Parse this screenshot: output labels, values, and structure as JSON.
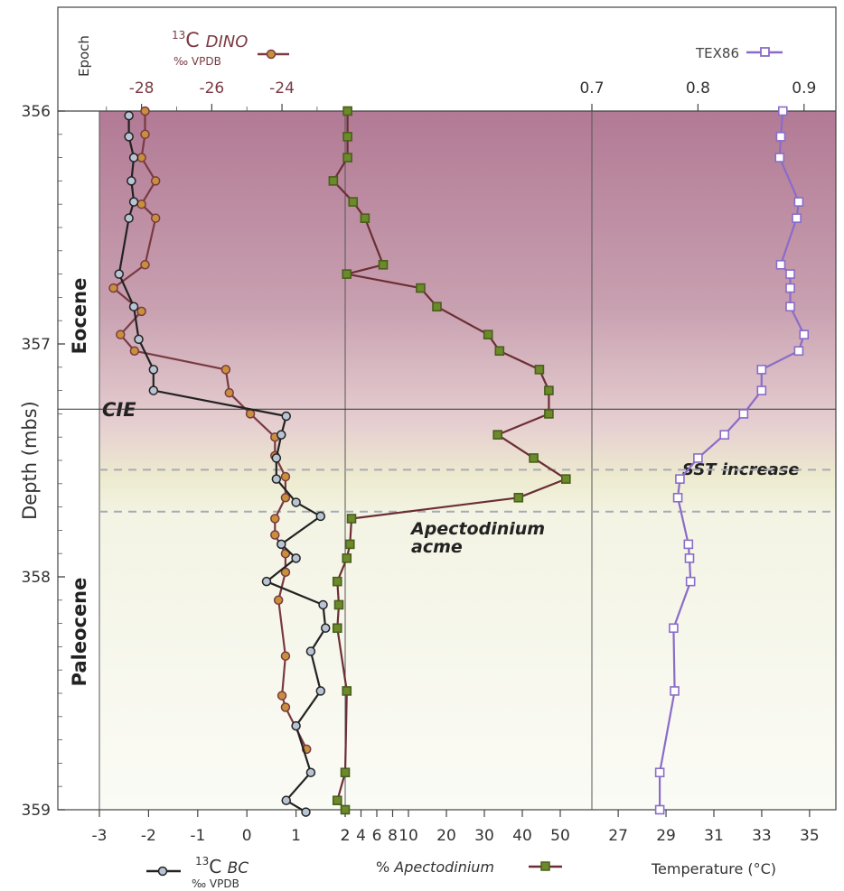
{
  "chart_data": {
    "type": "line",
    "y_axis": {
      "label": "Depth (mbs)",
      "range": [
        356,
        359
      ],
      "ticks": [
        "356",
        "357",
        "358",
        "359"
      ]
    },
    "epoch_label": "Epoch",
    "epochs": [
      {
        "name": "Eocene",
        "from": 356,
        "to": 357.28
      },
      {
        "name": "Paleocene",
        "from": 357.28,
        "to": 359
      }
    ],
    "annotations": {
      "cie": "CIE",
      "sst": "SST increase",
      "acme_line1": "Apectodinium",
      "acme_line2": "acme"
    },
    "cie_depth": 357.28,
    "dashed_lines": [
      357.54,
      357.72
    ],
    "panels": [
      {
        "id": "d13c",
        "top_axis": {
          "title_sup": "13",
          "title_main": "C ",
          "title_italic": "DINO",
          "title_sub": "‰ VPDB",
          "range": [
            -29.2,
            -22.2
          ],
          "ticks": [
            "-28",
            "-26",
            "-24"
          ]
        },
        "bottom_axis": {
          "title_sup": "13",
          "title_main": "C ",
          "title_italic": "BC",
          "title_sub": "‰ VPDB",
          "range": [
            -3.0,
            2.0
          ],
          "ticks": [
            "-3",
            "-2",
            "-1",
            "0",
            "1",
            "2"
          ]
        },
        "series": [
          {
            "name": "13C DINO",
            "axis": "top",
            "color": "#7a3a42",
            "marker_fill": "#c8903a",
            "points": [
              [
                356.0,
                -27.9
              ],
              [
                356.1,
                -27.9
              ],
              [
                356.2,
                -28.0
              ],
              [
                356.3,
                -27.6
              ],
              [
                356.4,
                -28.0
              ],
              [
                356.46,
                -27.6
              ],
              [
                356.66,
                -27.9
              ],
              [
                356.76,
                -28.8
              ],
              [
                356.86,
                -28.0
              ],
              [
                356.96,
                -28.6
              ],
              [
                357.03,
                -28.2
              ],
              [
                357.11,
                -25.6
              ],
              [
                357.21,
                -25.5
              ],
              [
                357.3,
                -24.9
              ],
              [
                357.4,
                -24.2
              ],
              [
                357.48,
                -24.2
              ],
              [
                357.57,
                -23.9
              ],
              [
                357.66,
                -23.9
              ],
              [
                357.75,
                -24.2
              ],
              [
                357.82,
                -24.2
              ],
              [
                357.9,
                -23.9
              ],
              [
                357.98,
                -23.9
              ],
              [
                358.1,
                -24.1
              ],
              [
                358.34,
                -23.9
              ],
              [
                358.51,
                -24.0
              ],
              [
                358.56,
                -23.9
              ],
              [
                358.74,
                -23.3
              ]
            ]
          },
          {
            "name": "13C BC",
            "axis": "bottom",
            "color": "#222222",
            "marker_fill": "#b8c4d4",
            "points": [
              [
                356.02,
                -2.4
              ],
              [
                356.11,
                -2.4
              ],
              [
                356.2,
                -2.3
              ],
              [
                356.3,
                -2.35
              ],
              [
                356.39,
                -2.3
              ],
              [
                356.46,
                -2.4
              ],
              [
                356.7,
                -2.6
              ],
              [
                356.84,
                -2.3
              ],
              [
                356.98,
                -2.2
              ],
              [
                357.11,
                -1.9
              ],
              [
                357.2,
                -1.9
              ],
              [
                357.31,
                0.8
              ],
              [
                357.39,
                0.7
              ],
              [
                357.49,
                0.6
              ],
              [
                357.58,
                0.6
              ],
              [
                357.68,
                1.0
              ],
              [
                357.74,
                1.5
              ],
              [
                357.86,
                0.7
              ],
              [
                357.92,
                1.0
              ],
              [
                358.02,
                0.4
              ],
              [
                358.12,
                1.55
              ],
              [
                358.22,
                1.6
              ],
              [
                358.32,
                1.3
              ],
              [
                358.49,
                1.5
              ],
              [
                358.64,
                1.0
              ],
              [
                358.84,
                1.3
              ],
              [
                358.96,
                0.8
              ],
              [
                359.01,
                1.2
              ]
            ]
          }
        ]
      },
      {
        "id": "apectodinium",
        "bottom_axis": {
          "title_main": "% ",
          "title_italic": "Apectodinium",
          "range": [
            -1.5,
            57
          ],
          "ticks": [
            "2",
            "4",
            "6",
            "8",
            "10",
            "20",
            "30",
            "40",
            "50"
          ],
          "tick_values": [
            2,
            4,
            6,
            8,
            10,
            20,
            30,
            40,
            50
          ]
        },
        "series": [
          {
            "name": "% Apectodinium",
            "color": "#6b2e35",
            "marker_fill": "#6b8a2a",
            "marker_edge": "#4a5e1c",
            "points": [
              [
                356.0,
                2.3
              ],
              [
                356.11,
                2.3
              ],
              [
                356.2,
                2.3
              ],
              [
                356.3,
                0.5
              ],
              [
                356.39,
                3.0
              ],
              [
                356.46,
                4.5
              ],
              [
                356.66,
                6.8
              ],
              [
                356.7,
                2.2
              ],
              [
                356.76,
                13.2
              ],
              [
                356.84,
                17.5
              ],
              [
                356.96,
                31.0
              ],
              [
                357.03,
                34.0
              ],
              [
                357.11,
                44.5
              ],
              [
                357.2,
                47.0
              ],
              [
                357.3,
                47.0
              ],
              [
                357.39,
                33.5
              ],
              [
                357.49,
                43.0
              ],
              [
                357.58,
                51.5
              ],
              [
                357.66,
                39.0
              ],
              [
                357.75,
                2.8
              ],
              [
                357.86,
                2.6
              ],
              [
                357.92,
                2.2
              ],
              [
                358.02,
                1.0
              ],
              [
                358.12,
                1.2
              ],
              [
                358.22,
                1.0
              ],
              [
                358.49,
                2.2
              ],
              [
                358.84,
                2.0
              ],
              [
                358.96,
                1.0
              ],
              [
                359.0,
                2.0
              ]
            ]
          }
        ]
      },
      {
        "id": "tex86",
        "top_axis": {
          "title": "TEX86",
          "range": [
            0.7,
            0.93
          ],
          "ticks": [
            "0.7",
            "0.8",
            "0.9"
          ]
        },
        "bottom_axis": {
          "title": "Temperature (°C)",
          "range": [
            25.9,
            36.1
          ],
          "ticks": [
            "27",
            "29",
            "31",
            "33",
            "35"
          ]
        },
        "series": [
          {
            "name": "TEX86",
            "color": "#8a6cc8",
            "marker_fill": "#ffffff",
            "marker_edge": "#8a6cc8",
            "points": [
              [
                356.0,
                0.88
              ],
              [
                356.11,
                0.878
              ],
              [
                356.2,
                0.877
              ],
              [
                356.39,
                0.895
              ],
              [
                356.46,
                0.893
              ],
              [
                356.66,
                0.878
              ],
              [
                356.7,
                0.887
              ],
              [
                356.76,
                0.887
              ],
              [
                356.84,
                0.887
              ],
              [
                356.96,
                0.9
              ],
              [
                357.03,
                0.895
              ],
              [
                357.11,
                0.86
              ],
              [
                357.2,
                0.86
              ],
              [
                357.3,
                0.843
              ],
              [
                357.39,
                0.825
              ],
              [
                357.49,
                0.8
              ],
              [
                357.58,
                0.783
              ],
              [
                357.66,
                0.781
              ],
              [
                357.86,
                0.791
              ],
              [
                357.92,
                0.792
              ],
              [
                358.02,
                0.793
              ],
              [
                358.22,
                0.777
              ],
              [
                358.49,
                0.778
              ],
              [
                358.84,
                0.764
              ],
              [
                359.0,
                0.764
              ]
            ]
          }
        ]
      }
    ]
  }
}
